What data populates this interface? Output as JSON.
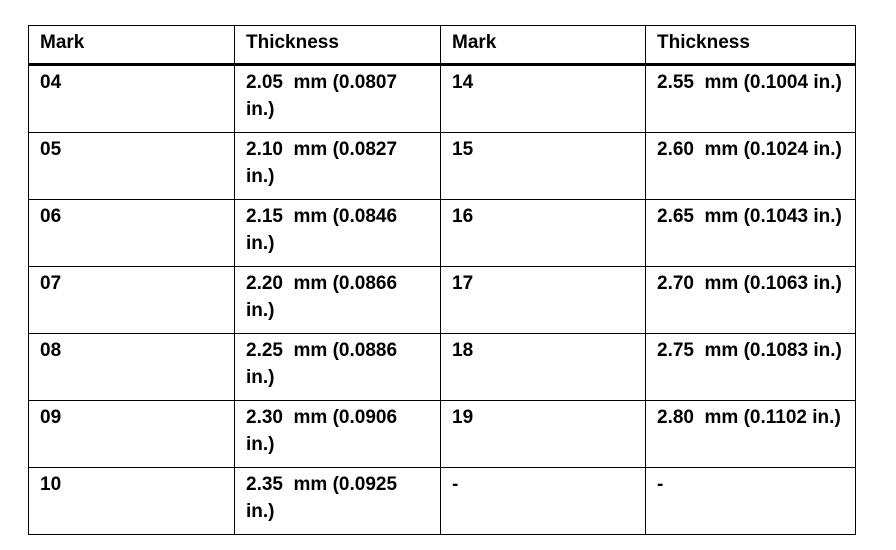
{
  "table": {
    "headers": [
      "Mark",
      "Thickness",
      "Mark",
      "Thickness"
    ],
    "rows": [
      [
        "04",
        "2.05  mm (0.0807 in.)",
        "14",
        "2.55  mm (0.1004 in.)"
      ],
      [
        "05",
        "2.10  mm (0.0827 in.)",
        "15",
        "2.60  mm (0.1024 in.)"
      ],
      [
        "06",
        "2.15  mm (0.0846 in.)",
        "16",
        "2.65  mm (0.1043 in.)"
      ],
      [
        "07",
        "2.20  mm (0.0866 in.)",
        "17",
        "2.70  mm (0.1063 in.)"
      ],
      [
        "08",
        "2.25  mm (0.0886 in.)",
        "18",
        "2.75  mm (0.1083 in.)"
      ],
      [
        "09",
        "2.30  mm (0.0906 in.)",
        "19",
        "2.80  mm (0.1102 in.)"
      ],
      [
        "10",
        "2.35  mm (0.0925 in.)",
        "-",
        "-"
      ]
    ]
  }
}
